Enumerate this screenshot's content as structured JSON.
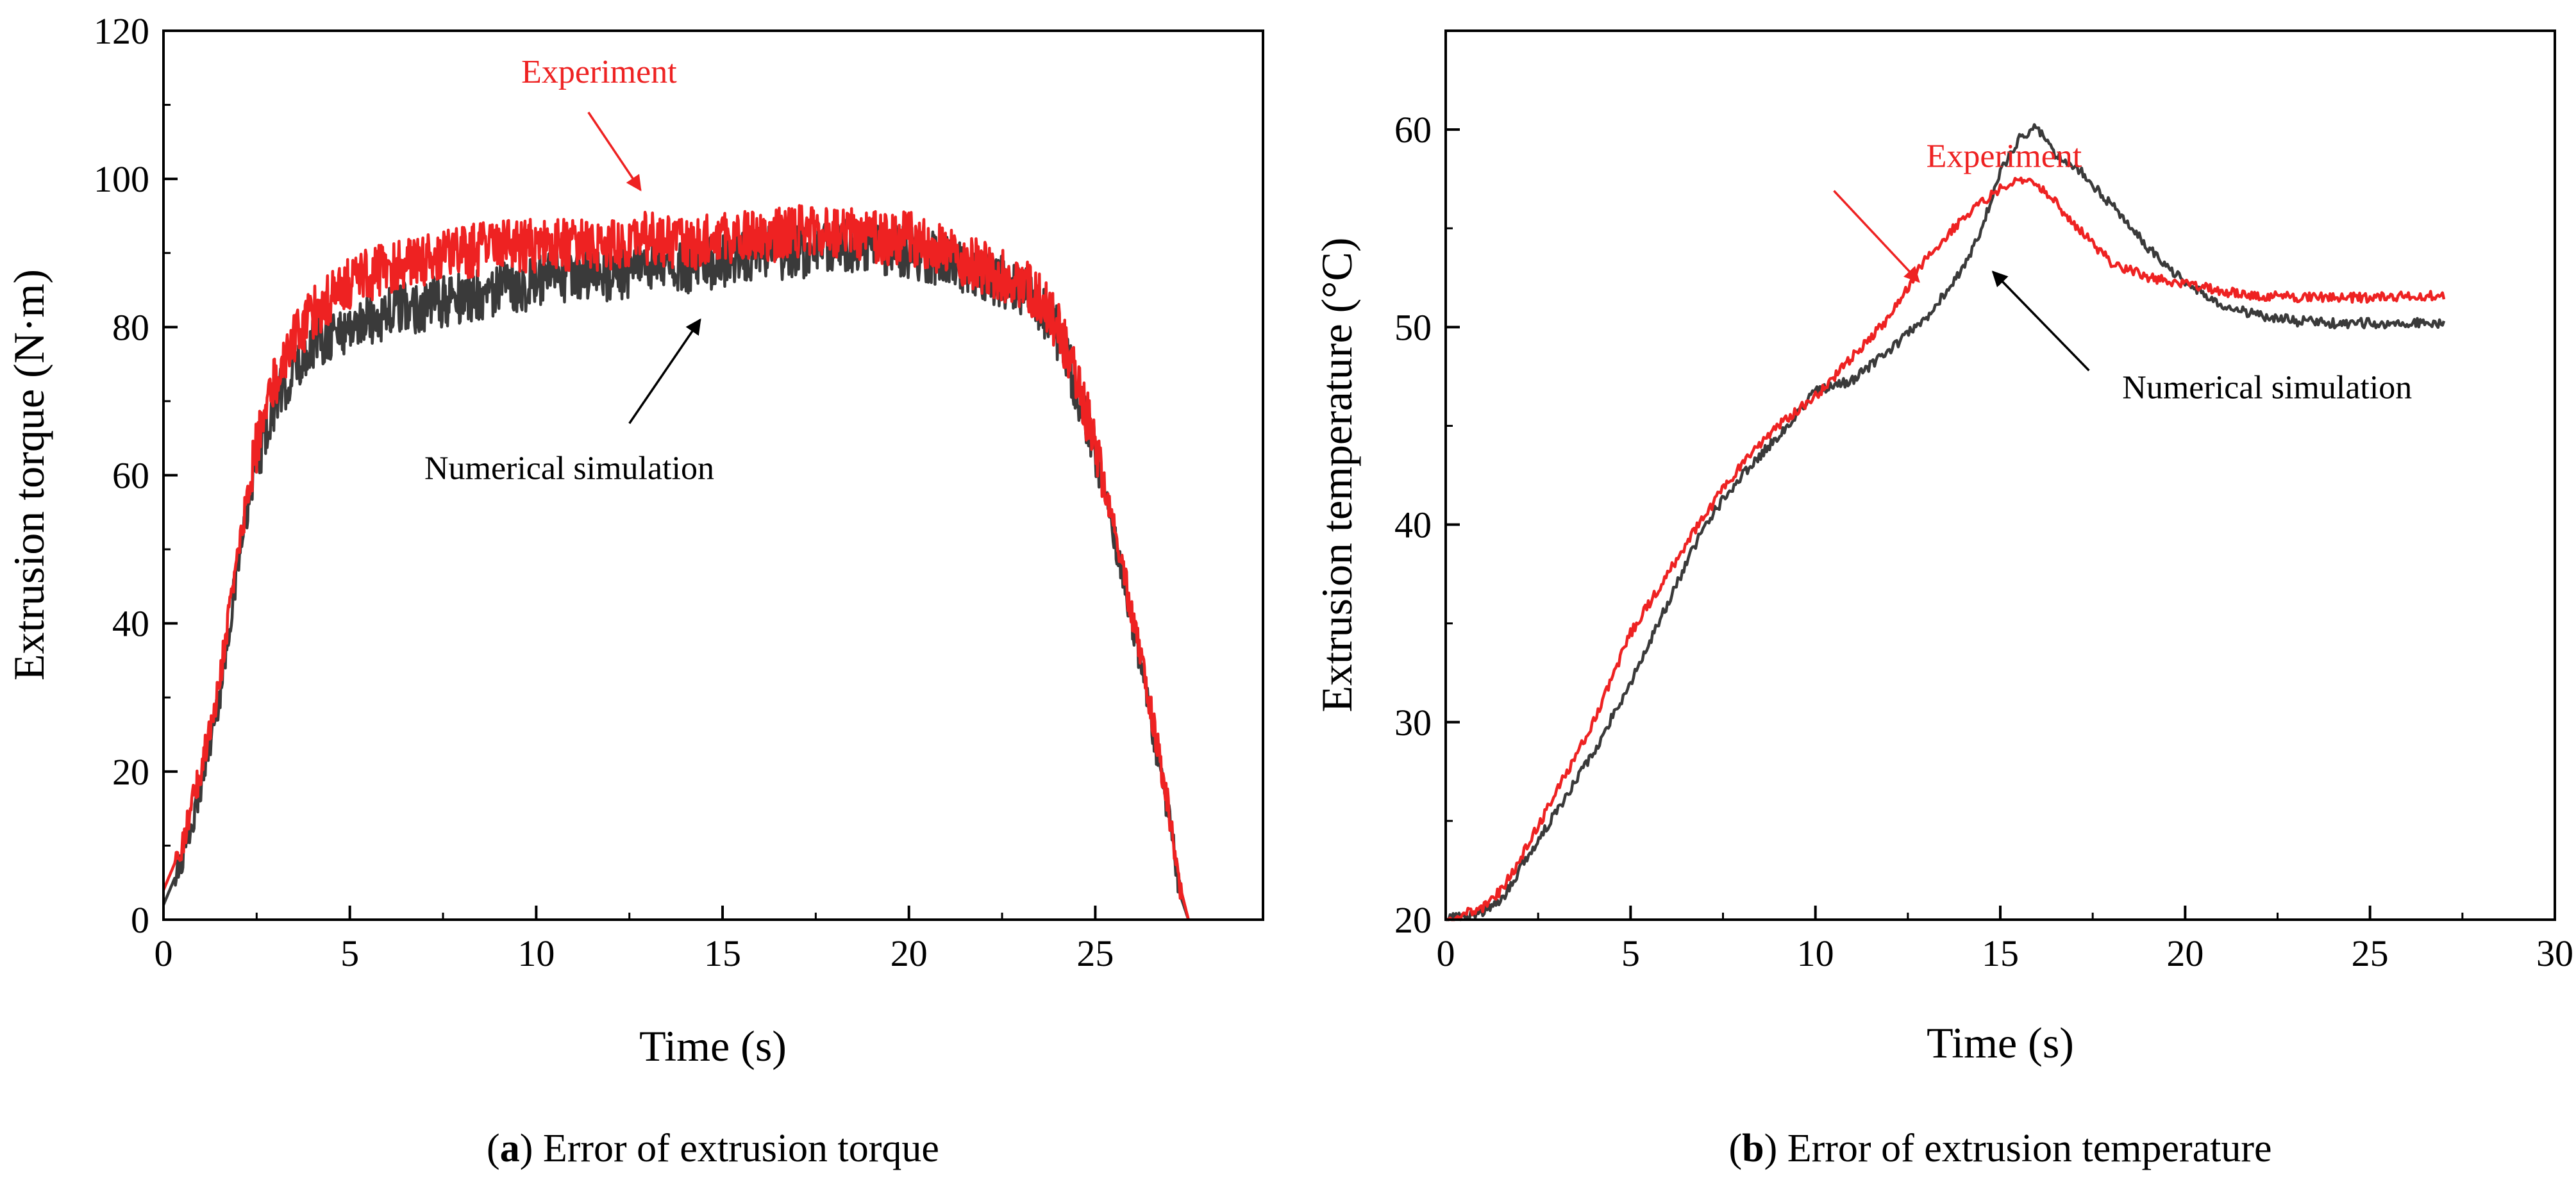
{
  "figure": {
    "captions": [
      {
        "letter": "a",
        "text": "Error of extrusion torque"
      },
      {
        "letter": "b",
        "text": "Error of extrusion temperature"
      }
    ]
  },
  "colors": {
    "experiment": "#ee2222",
    "simulation": "#3a3a3a",
    "axis": "#000000"
  },
  "chart_data": [
    {
      "type": "line",
      "panel": "a",
      "title": "",
      "xlabel": "Time (s)",
      "ylabel": "Extrusion torque (N·m)",
      "xlim": [
        0,
        29.5
      ],
      "ylim": [
        0,
        120
      ],
      "xticks": [
        0,
        5,
        10,
        15,
        20,
        25
      ],
      "yticks": [
        0,
        20,
        40,
        60,
        80,
        100,
        120
      ],
      "grid": false,
      "noise": true,
      "series": [
        {
          "name": "Numerical simulation",
          "color": "#3a3a3a",
          "x": [
            0,
            0.5,
            1,
            1.5,
            2,
            2.5,
            3,
            3.5,
            4,
            5,
            6,
            7,
            8,
            9,
            10,
            11,
            12,
            13,
            14,
            15,
            16,
            17,
            18,
            19,
            20,
            21,
            22,
            23,
            23.5,
            24,
            24.5,
            25,
            25.5,
            26,
            26.5,
            27,
            27.3,
            27.5
          ],
          "y": [
            2,
            8,
            18,
            30,
            48,
            62,
            70,
            74,
            78,
            80,
            82,
            83,
            84,
            85,
            86,
            87,
            87,
            88,
            88,
            89,
            90,
            90,
            91,
            91,
            90,
            89,
            87,
            85,
            83,
            79,
            72,
            63,
            52,
            40,
            27,
            13,
            3,
            0
          ]
        },
        {
          "name": "Experiment",
          "color": "#ee2222",
          "x": [
            0,
            0.5,
            1,
            1.5,
            2,
            2.5,
            3,
            3.5,
            4,
            5,
            6,
            7,
            8,
            9,
            10,
            11,
            12,
            13,
            14,
            15,
            16,
            17,
            18,
            19,
            20,
            21,
            22,
            23,
            23.5,
            24,
            24.5,
            25,
            25.5,
            26,
            26.5,
            27,
            27.3,
            27.5
          ],
          "y": [
            4,
            10,
            20,
            32,
            50,
            64,
            73,
            78,
            82,
            86,
            88,
            89,
            90,
            91,
            91,
            91,
            91,
            92,
            91,
            92,
            92,
            93,
            93,
            92,
            92,
            90,
            88,
            86,
            84,
            80,
            73,
            64,
            53,
            41,
            28,
            14,
            4,
            0
          ]
        }
      ],
      "annotations": [
        {
          "text": "Experiment",
          "series": "Experiment",
          "color": "#ee2222",
          "label_x": 9.6,
          "label_y": 113,
          "arrow_from": [
            11.4,
            109
          ],
          "arrow_to": [
            12.8,
            98.5
          ]
        },
        {
          "text": "Numerical simulation",
          "series": "Numerical simulation",
          "color": "#000000",
          "label_x": 7.0,
          "label_y": 59.5,
          "arrow_from": [
            12.5,
            67
          ],
          "arrow_to": [
            14.4,
            81
          ]
        }
      ]
    },
    {
      "type": "line",
      "panel": "b",
      "title": "",
      "xlabel": "Time (s)",
      "ylabel": "Extrusion temperature (°C)",
      "xlim": [
        0,
        30
      ],
      "ylim": [
        20,
        65
      ],
      "xticks": [
        0,
        5,
        10,
        15,
        20,
        25,
        30
      ],
      "yticks": [
        20,
        30,
        40,
        50,
        60
      ],
      "grid": false,
      "noise": false,
      "series": [
        {
          "name": "Numerical simulation",
          "color": "#3a3a3a",
          "x": [
            0,
            1,
            1.5,
            2,
            3,
            4,
            5,
            6,
            7,
            8,
            9,
            10,
            11,
            12,
            13,
            14,
            14.5,
            15,
            15.5,
            16,
            16.5,
            17,
            18,
            19,
            20,
            21,
            22,
            23,
            24,
            25,
            26,
            27
          ],
          "y": [
            20,
            20.4,
            21,
            22.5,
            25.5,
            28.5,
            32,
            36,
            40,
            42.5,
            44.5,
            46.8,
            47.3,
            48.8,
            50.5,
            53,
            55,
            57.8,
            59.5,
            60.1,
            58.7,
            58.2,
            56.2,
            54,
            52.2,
            51.1,
            50.6,
            50.3,
            50.2,
            50.2,
            50.2,
            50.2
          ]
        },
        {
          "name": "Experiment",
          "color": "#ee2222",
          "x": [
            0,
            1,
            1.5,
            2,
            3,
            4,
            5,
            6,
            7,
            8,
            9,
            10,
            11,
            12,
            13,
            14,
            15,
            15.5,
            16,
            16.5,
            17,
            18,
            19,
            20,
            21,
            22,
            23,
            24,
            25,
            26,
            27
          ],
          "y": [
            20,
            20.6,
            21.5,
            23,
            26.5,
            30,
            34.5,
            37.5,
            40.5,
            43,
            45,
            46.5,
            48.5,
            50.5,
            53.5,
            55.5,
            57,
            57.4,
            57.2,
            56.3,
            55.2,
            53.3,
            52.5,
            52.2,
            51.8,
            51.6,
            51.5,
            51.5,
            51.5,
            51.6,
            51.6
          ]
        }
      ],
      "annotations": [
        {
          "text": "Experiment",
          "series": "Experiment",
          "color": "#ee2222",
          "label_x": 13.0,
          "label_y": 58.1,
          "arrow_from": [
            10.5,
            56.9
          ],
          "arrow_to": [
            12.8,
            52.3
          ]
        },
        {
          "text": "Numerical simulation",
          "series": "Numerical simulation",
          "color": "#000000",
          "label_x": 18.3,
          "label_y": 46.4,
          "arrow_from": [
            17.4,
            47.8
          ],
          "arrow_to": [
            14.8,
            52.8
          ]
        }
      ]
    }
  ]
}
